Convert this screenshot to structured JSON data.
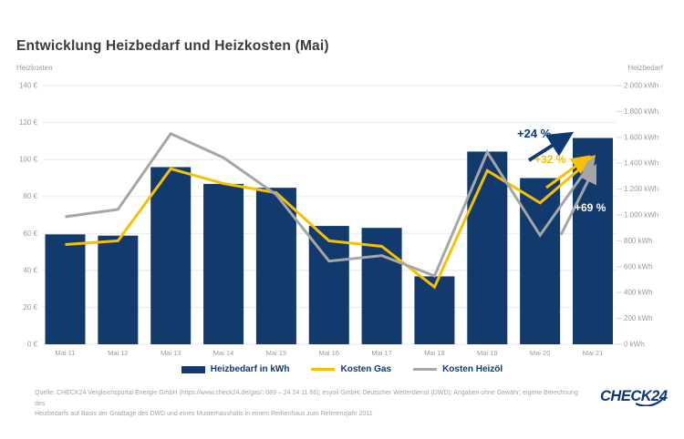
{
  "page": {
    "title": "Entwicklung Heizbedarf und Heizkosten (Mai)"
  },
  "colors": {
    "bar_navy": "#123a6d",
    "accent_navy": "#0c3b74",
    "gas_yellow": "#f7c100",
    "oil_gray": "#a6a6a6",
    "grid_gray": "#e8e8e8",
    "axis_text": "#9b9b9b",
    "annotation_white": "#ffffff"
  },
  "chart_data": {
    "type": "bar",
    "subtype": "bar+line combo, dual axis",
    "title": "Entwicklung Heizbedarf und Heizkosten (Mai)",
    "grid": true,
    "legend_position": "bottom",
    "categories": [
      "Mai 11",
      "Mai 12",
      "Mai 13",
      "Mai 14",
      "Mai 15",
      "Mai 16",
      "Mai 17",
      "Mai 18",
      "Mai 19",
      "Mai 20",
      "Mai 21"
    ],
    "left_axis": {
      "title": "Heizkosten",
      "unit": "EUR",
      "min": 0,
      "max": 140,
      "step": 20,
      "ticks": [
        {
          "value": 140,
          "label": "140 €"
        },
        {
          "value": 120,
          "label": "120 €"
        },
        {
          "value": 100,
          "label": "100 €"
        },
        {
          "value": 80,
          "label": "80 €"
        },
        {
          "value": 60,
          "label": "60 €"
        },
        {
          "value": 40,
          "label": "40 €"
        },
        {
          "value": 20,
          "label": "20 €"
        },
        {
          "value": 0,
          "label": "0 €"
        }
      ]
    },
    "right_axis": {
      "title": "Heizbedarf",
      "unit": "kWh",
      "min": 0,
      "max": 2000,
      "step": 200,
      "ticks": [
        {
          "value": 2000,
          "label": "2.000 kWh"
        },
        {
          "value": 1800,
          "label": "1.800 kWh"
        },
        {
          "value": 1600,
          "label": "1.600 kWh"
        },
        {
          "value": 1400,
          "label": "1.400 kWh"
        },
        {
          "value": 1200,
          "label": "1.200 kWh"
        },
        {
          "value": 1000,
          "label": "1.000 kWh"
        },
        {
          "value": 800,
          "label": "800 kWh"
        },
        {
          "value": 600,
          "label": "600 kWh"
        },
        {
          "value": 400,
          "label": "400 kWh"
        },
        {
          "value": 200,
          "label": "200 kWh"
        },
        {
          "value": 0,
          "label": "0 kWh"
        }
      ]
    },
    "series": [
      {
        "name": "Heizbedarf in kWh",
        "type": "bar",
        "axis": "right",
        "color": "#123a6d",
        "values": [
          850,
          840,
          1370,
          1240,
          1210,
          915,
          900,
          525,
          1490,
          1285,
          1595
        ]
      },
      {
        "name": "Kosten Gas",
        "type": "line",
        "axis": "left",
        "color": "#f7c100",
        "values": [
          54,
          56,
          95,
          87,
          82,
          56,
          53,
          31,
          94,
          76.5,
          101
        ]
      },
      {
        "name": "Kosten Heizöl",
        "type": "line",
        "axis": "left",
        "color": "#a6a6a6",
        "values": [
          69,
          73,
          114,
          101,
          81,
          45,
          48,
          37,
          104,
          59,
          99.5
        ]
      }
    ],
    "annotations": [
      {
        "label": "+24 %",
        "color": "#0c3b74",
        "refers_to": "Heizbedarf in kWh (Mai 20 zu Mai 21)"
      },
      {
        "label": "+32 %",
        "color": "#f7c100",
        "refers_to": "Kosten Gas (Mai 20 zu Mai 21)"
      },
      {
        "label": "+69 %",
        "color": "#ffffff",
        "refers_to": "Kosten Heizöl (Mai 20 zu Mai 21)"
      }
    ]
  },
  "legend": {
    "items": [
      {
        "label": "Heizbedarf in kWh",
        "marker": "rect",
        "color": "#123a6d"
      },
      {
        "label": "Kosten Gas",
        "marker": "line",
        "color": "#f7c100"
      },
      {
        "label": "Kosten Heizöl",
        "marker": "line",
        "color": "#a6a6a6"
      }
    ]
  },
  "source": {
    "line1": "Quelle: CHECK24 Vergleichsportal Energie GmbH (https://www.check24.de/gas/; 089 – 24 24 11 66); esyoil GmbH; Deutscher Wetterdienst (DWD); Angaben ohne Gewähr; eigene Berechnung des",
    "line2": "Heizbedarfs auf Basis der Gradtage des DWD und eines Musterhaushalts in einem Reihenhaus zum Referenzjahr 2011"
  },
  "logo": {
    "text": "CHECK24"
  }
}
